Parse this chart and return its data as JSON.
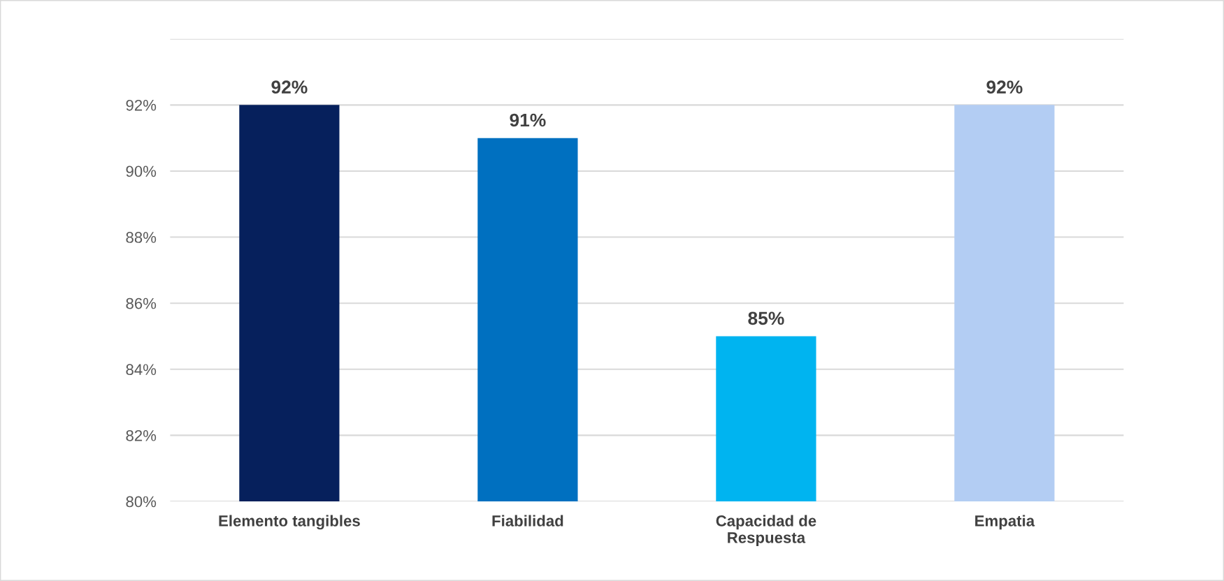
{
  "chart_data": {
    "type": "bar",
    "categories": [
      "Elemento tangibles",
      "Fiabilidad",
      "Capacidad de\nRespuesta",
      "Empatia"
    ],
    "values": [
      92,
      91,
      85,
      92
    ],
    "colors": [
      "#06205c",
      "#0070c0",
      "#00b4f0",
      "#b3cdf3"
    ],
    "value_labels": [
      "92%",
      "91%",
      "85%",
      "92%"
    ],
    "ylim": [
      80,
      94
    ],
    "yticks": [
      {
        "value": 80,
        "label": "80%"
      },
      {
        "value": 82,
        "label": "82%"
      },
      {
        "value": 84,
        "label": "84%"
      },
      {
        "value": 86,
        "label": "86%"
      },
      {
        "value": 88,
        "label": "88%"
      },
      {
        "value": 90,
        "label": "90%"
      },
      {
        "value": 92,
        "label": "92%"
      },
      {
        "value": 94,
        "label": null
      }
    ],
    "grid": "y"
  }
}
